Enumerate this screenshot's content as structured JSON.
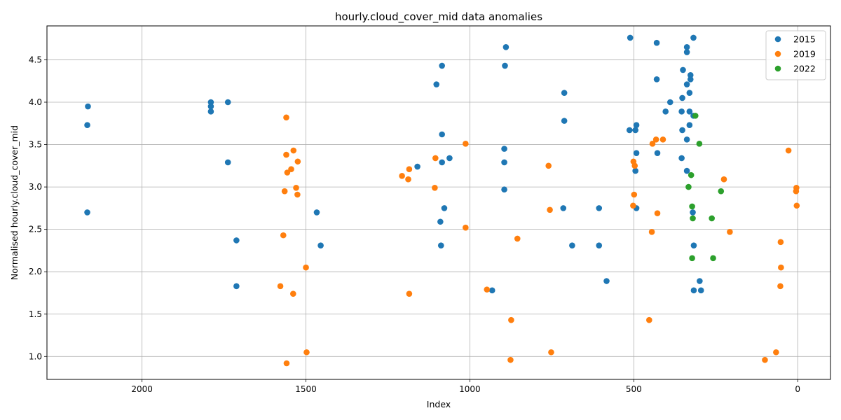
{
  "chart_data": {
    "type": "scatter",
    "title": "hourly.cloud_cover_mid data anomalies",
    "xlabel": "Index",
    "ylabel": "Normalised hourly.cloud_cover_mid",
    "xlim": [
      2290,
      -100
    ],
    "ylim": [
      0.73,
      4.9
    ],
    "x_inverted": true,
    "grid": true,
    "legend_position": "top-right",
    "xticks": [
      2000,
      1500,
      1000,
      500,
      0
    ],
    "yticks": [
      1.0,
      1.5,
      2.0,
      2.5,
      3.0,
      3.5,
      4.0,
      4.5
    ],
    "series": [
      {
        "name": "2015",
        "color": "#1f77b4",
        "points": [
          [
            2165,
            3.95
          ],
          [
            2167,
            3.73
          ],
          [
            2167,
            2.7
          ],
          [
            1790,
            4.0
          ],
          [
            1790,
            3.95
          ],
          [
            1790,
            3.89
          ],
          [
            1738,
            4.0
          ],
          [
            1738,
            3.29
          ],
          [
            1712,
            2.37
          ],
          [
            1712,
            1.83
          ],
          [
            1467,
            2.7
          ],
          [
            1455,
            2.31
          ],
          [
            1160,
            3.24
          ],
          [
            1102,
            4.21
          ],
          [
            1085,
            4.43
          ],
          [
            1085,
            3.62
          ],
          [
            1085,
            3.29
          ],
          [
            1078,
            2.75
          ],
          [
            1090,
            2.59
          ],
          [
            1088,
            2.31
          ],
          [
            1062,
            3.34
          ],
          [
            932,
            1.78
          ],
          [
            895,
            3.45
          ],
          [
            895,
            3.29
          ],
          [
            895,
            2.97
          ],
          [
            890,
            4.65
          ],
          [
            893,
            4.43
          ],
          [
            712,
            4.11
          ],
          [
            712,
            3.78
          ],
          [
            715,
            2.75
          ],
          [
            688,
            2.31
          ],
          [
            606,
            2.75
          ],
          [
            606,
            2.31
          ],
          [
            583,
            1.89
          ],
          [
            511,
            4.76
          ],
          [
            513,
            3.67
          ],
          [
            492,
            3.73
          ],
          [
            495,
            3.67
          ],
          [
            492,
            3.4
          ],
          [
            495,
            3.19
          ],
          [
            492,
            2.75
          ],
          [
            430,
            4.7
          ],
          [
            430,
            4.27
          ],
          [
            428,
            3.4
          ],
          [
            403,
            3.89
          ],
          [
            389,
            4.0
          ],
          [
            350,
            4.38
          ],
          [
            352,
            4.05
          ],
          [
            354,
            3.89
          ],
          [
            352,
            3.67
          ],
          [
            354,
            3.34
          ],
          [
            338,
            4.65
          ],
          [
            338,
            4.59
          ],
          [
            338,
            4.21
          ],
          [
            338,
            3.56
          ],
          [
            338,
            3.19
          ],
          [
            330,
            4.11
          ],
          [
            330,
            3.89
          ],
          [
            330,
            3.73
          ],
          [
            327,
            4.32
          ],
          [
            327,
            4.27
          ],
          [
            318,
            4.76
          ],
          [
            318,
            3.84
          ],
          [
            320,
            2.7
          ],
          [
            317,
            2.31
          ],
          [
            317,
            1.78
          ],
          [
            299,
            1.89
          ],
          [
            295,
            1.78
          ]
        ]
      },
      {
        "name": "2019",
        "color": "#ff7f0e",
        "points": [
          [
            1560,
            3.82
          ],
          [
            1560,
            3.38
          ],
          [
            1557,
            3.17
          ],
          [
            1545,
            3.21
          ],
          [
            1538,
            3.43
          ],
          [
            1525,
            3.3
          ],
          [
            1530,
            2.99
          ],
          [
            1526,
            2.91
          ],
          [
            1565,
            2.95
          ],
          [
            1569,
            2.43
          ],
          [
            1578,
            1.83
          ],
          [
            1539,
            1.74
          ],
          [
            1500,
            2.05
          ],
          [
            1498,
            1.05
          ],
          [
            1559,
            0.92
          ],
          [
            1207,
            3.13
          ],
          [
            1185,
            3.21
          ],
          [
            1188,
            3.09
          ],
          [
            1185,
            1.74
          ],
          [
            1105,
            3.34
          ],
          [
            1107,
            2.99
          ],
          [
            1013,
            3.51
          ],
          [
            1013,
            2.52
          ],
          [
            948,
            1.79
          ],
          [
            855,
            2.39
          ],
          [
            874,
            1.43
          ],
          [
            876,
            0.96
          ],
          [
            760,
            3.25
          ],
          [
            756,
            2.73
          ],
          [
            752,
            1.05
          ],
          [
            501,
            3.3
          ],
          [
            497,
            3.25
          ],
          [
            499,
            2.91
          ],
          [
            502,
            2.78
          ],
          [
            443,
            3.51
          ],
          [
            432,
            3.56
          ],
          [
            411,
            3.56
          ],
          [
            428,
            2.69
          ],
          [
            445,
            2.47
          ],
          [
            453,
            1.43
          ],
          [
            225,
            3.09
          ],
          [
            207,
            2.47
          ],
          [
            28,
            3.43
          ],
          [
            4,
            2.99
          ],
          [
            5,
            2.95
          ],
          [
            3,
            2.78
          ],
          [
            52,
            2.35
          ],
          [
            51,
            2.05
          ],
          [
            53,
            1.83
          ],
          [
            66,
            1.05
          ],
          [
            100,
            0.96
          ]
        ]
      },
      {
        "name": "2022",
        "color": "#2ca02c",
        "points": [
          [
            312,
            3.84
          ],
          [
            300,
            3.51
          ],
          [
            325,
            3.14
          ],
          [
            333,
            3.0
          ],
          [
            234,
            2.95
          ],
          [
            322,
            2.77
          ],
          [
            320,
            2.63
          ],
          [
            262,
            2.63
          ],
          [
            322,
            2.16
          ],
          [
            258,
            2.16
          ]
        ]
      }
    ]
  }
}
